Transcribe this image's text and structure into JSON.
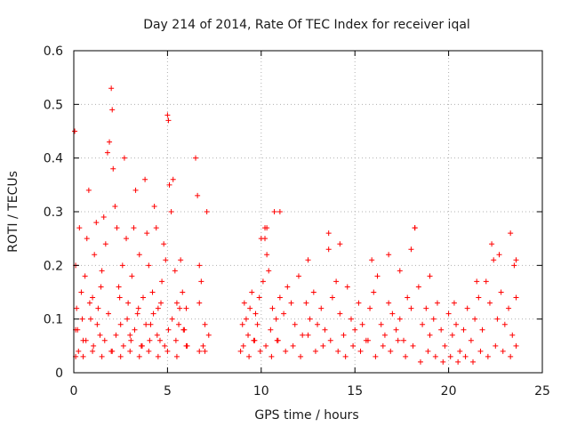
{
  "chart_data": {
    "type": "scatter",
    "title": "Day 214 of 2014, Rate Of TEC Index for receiver iqal",
    "xlabel": "GPS time / hours",
    "ylabel": "ROTI / TECUs",
    "xlim": [
      0,
      25
    ],
    "ylim": [
      0,
      0.6
    ],
    "xticks": [
      0,
      5,
      10,
      15,
      20,
      25
    ],
    "yticks": [
      0,
      0.1,
      0.2,
      0.3,
      0.4,
      0.5,
      0.6
    ],
    "xtick_labels": [
      "0",
      "5",
      "10",
      "15",
      "20",
      "25"
    ],
    "ytick_labels": [
      "0",
      "0.1",
      "0.2",
      "0.3",
      "0.4",
      "0.5",
      "0.6"
    ],
    "grid": true,
    "marker": "+",
    "color": "#ff0000",
    "series": [
      {
        "name": "ROTI",
        "x": [
          0.05,
          0.1,
          0.15,
          0.2,
          0.3,
          0.4,
          0.5,
          0.6,
          0.7,
          0.8,
          0.9,
          1.0,
          1.1,
          1.2,
          1.3,
          1.4,
          1.5,
          1.6,
          1.7,
          1.8,
          1.9,
          2.0,
          2.05,
          2.1,
          2.2,
          2.3,
          2.4,
          2.5,
          2.6,
          2.7,
          2.8,
          2.9,
          3.0,
          3.1,
          3.2,
          3.3,
          3.4,
          3.5,
          3.6,
          3.7,
          3.8,
          3.9,
          4.0,
          4.1,
          4.2,
          4.3,
          4.4,
          4.5,
          4.6,
          4.7,
          4.8,
          4.9,
          5.0,
          5.05,
          5.1,
          5.2,
          5.3,
          5.4,
          5.5,
          5.6,
          5.7,
          5.8,
          5.9,
          6.0,
          6.5,
          6.6,
          6.7,
          6.8,
          7.0,
          7.1,
          7.2,
          0.1,
          0.25,
          0.45,
          0.65,
          0.85,
          1.05,
          1.25,
          1.45,
          1.65,
          1.85,
          2.05,
          2.25,
          2.45,
          2.65,
          2.85,
          3.05,
          3.25,
          3.45,
          3.65,
          3.85,
          4.05,
          4.25,
          4.45,
          4.65,
          4.85,
          5.05,
          5.25,
          5.45,
          5.65,
          5.85,
          6.05,
          6.7,
          6.9,
          0.1,
          0.5,
          1.0,
          1.5,
          2.0,
          2.5,
          3.0,
          3.5,
          4.0,
          4.5,
          5.0,
          5.5,
          6.0,
          6.7,
          7.0,
          8.9,
          9.0,
          9.1,
          9.2,
          9.3,
          9.4,
          9.5,
          9.6,
          9.7,
          9.8,
          9.9,
          10.0,
          10.1,
          10.2,
          10.3,
          10.4,
          10.5,
          10.6,
          10.7,
          10.8,
          10.9,
          11.0,
          11.2,
          11.4,
          11.6,
          11.8,
          12.0,
          12.2,
          12.4,
          12.6,
          12.8,
          13.0,
          13.2,
          13.4,
          13.6,
          13.8,
          14.0,
          14.2,
          14.4,
          14.6,
          14.8,
          15.0,
          15.2,
          15.4,
          15.6,
          15.8,
          16.0,
          16.2,
          16.4,
          16.6,
          16.8,
          17.0,
          17.2,
          17.4,
          17.6,
          17.8,
          18.0,
          18.2,
          18.4,
          18.6,
          18.8,
          19.0,
          19.2,
          19.4,
          19.6,
          19.8,
          20.0,
          20.2,
          20.4,
          20.6,
          20.8,
          21.0,
          21.2,
          21.4,
          21.6,
          21.8,
          22.0,
          22.2,
          22.4,
          22.6,
          22.8,
          23.0,
          23.2,
          23.4,
          23.6,
          9.05,
          9.35,
          9.65,
          9.95,
          10.25,
          10.55,
          10.85,
          11.3,
          11.7,
          12.1,
          12.5,
          12.9,
          13.3,
          13.7,
          14.1,
          14.5,
          14.9,
          15.3,
          15.7,
          16.1,
          16.5,
          16.9,
          17.3,
          17.7,
          18.1,
          18.5,
          18.9,
          19.3,
          19.7,
          20.1,
          20.5,
          20.9,
          21.3,
          21.7,
          22.1,
          22.5,
          22.9,
          23.3,
          23.6,
          10.2,
          10.3,
          11.0,
          12.5,
          13.6,
          14.2,
          15.9,
          16.8,
          17.4,
          18.0,
          18.2,
          19.0,
          20.3,
          21.5,
          22.3,
          22.7,
          23.3,
          23.5,
          23.6
        ],
        "y": [
          0.45,
          0.2,
          0.12,
          0.08,
          0.27,
          0.15,
          0.06,
          0.18,
          0.25,
          0.34,
          0.1,
          0.14,
          0.22,
          0.28,
          0.12,
          0.07,
          0.19,
          0.29,
          0.24,
          0.41,
          0.43,
          0.53,
          0.49,
          0.38,
          0.31,
          0.27,
          0.16,
          0.09,
          0.2,
          0.4,
          0.25,
          0.13,
          0.07,
          0.18,
          0.27,
          0.34,
          0.11,
          0.22,
          0.05,
          0.14,
          0.36,
          0.26,
          0.2,
          0.09,
          0.15,
          0.31,
          0.27,
          0.12,
          0.06,
          0.17,
          0.24,
          0.21,
          0.48,
          0.47,
          0.35,
          0.3,
          0.36,
          0.19,
          0.13,
          0.09,
          0.21,
          0.15,
          0.08,
          0.12,
          0.4,
          0.33,
          0.2,
          0.17,
          0.09,
          0.3,
          0.07,
          0.08,
          0.04,
          0.1,
          0.06,
          0.13,
          0.05,
          0.09,
          0.16,
          0.06,
          0.11,
          0.04,
          0.07,
          0.14,
          0.05,
          0.1,
          0.06,
          0.08,
          0.12,
          0.05,
          0.09,
          0.06,
          0.11,
          0.07,
          0.13,
          0.05,
          0.08,
          0.1,
          0.06,
          0.12,
          0.08,
          0.05,
          0.13,
          0.05,
          0.03,
          0.03,
          0.04,
          0.03,
          0.04,
          0.03,
          0.04,
          0.03,
          0.04,
          0.03,
          0.04,
          0.03,
          0.05,
          0.04,
          0.04,
          0.04,
          0.09,
          0.13,
          0.1,
          0.07,
          0.12,
          0.15,
          0.06,
          0.11,
          0.09,
          0.14,
          0.25,
          0.17,
          0.27,
          0.22,
          0.19,
          0.08,
          0.12,
          0.3,
          0.1,
          0.06,
          0.14,
          0.11,
          0.16,
          0.13,
          0.09,
          0.18,
          0.07,
          0.13,
          0.1,
          0.15,
          0.09,
          0.12,
          0.08,
          0.23,
          0.14,
          0.17,
          0.11,
          0.07,
          0.16,
          0.1,
          0.08,
          0.13,
          0.09,
          0.06,
          0.12,
          0.15,
          0.18,
          0.09,
          0.07,
          0.13,
          0.11,
          0.08,
          0.1,
          0.06,
          0.14,
          0.12,
          0.27,
          0.16,
          0.09,
          0.12,
          0.07,
          0.1,
          0.13,
          0.08,
          0.05,
          0.11,
          0.07,
          0.09,
          0.04,
          0.08,
          0.12,
          0.06,
          0.1,
          0.14,
          0.08,
          0.17,
          0.13,
          0.21,
          0.1,
          0.15,
          0.09,
          0.12,
          0.07,
          0.14,
          0.05,
          0.03,
          0.06,
          0.04,
          0.05,
          0.03,
          0.06,
          0.04,
          0.05,
          0.03,
          0.07,
          0.04,
          0.05,
          0.06,
          0.04,
          0.03,
          0.05,
          0.04,
          0.06,
          0.03,
          0.05,
          0.04,
          0.06,
          0.03,
          0.05,
          0.02,
          0.04,
          0.03,
          0.02,
          0.03,
          0.02,
          0.03,
          0.02,
          0.04,
          0.03,
          0.05,
          0.04,
          0.03,
          0.05,
          0.25,
          0.27,
          0.3,
          0.21,
          0.26,
          0.24,
          0.21,
          0.22,
          0.19,
          0.23,
          0.27,
          0.18,
          0.13,
          0.17,
          0.24,
          0.22,
          0.26,
          0.2,
          0.21
        ]
      }
    ]
  }
}
